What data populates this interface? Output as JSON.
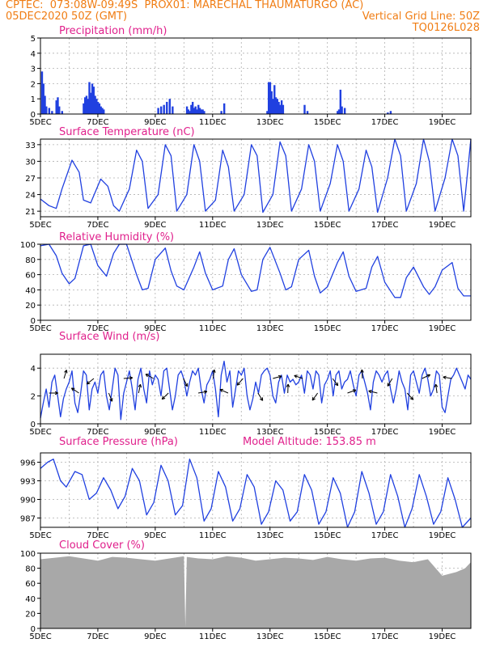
{
  "header": {
    "line1_left": "CPTEC:  073:08W-09:49S  PROX01: MARECHAL THAUMATURGO (AC)",
    "line2_left": "05DEC2020 50Z (GMT)",
    "line2_right": "Vertical Grid Line: 50Z",
    "line3_right": "TQ0126L028"
  },
  "colors": {
    "header": "#f07d14",
    "title": "#e0208c",
    "series": "#2040e0",
    "cloud": "#a8a8a8",
    "arrow": "#000000"
  },
  "x_tick_labels": [
    "5DEC",
    "7DEC",
    "9DEC",
    "11DEC",
    "13DEC",
    "15DEC",
    "17DEC",
    "19DEC"
  ],
  "panels": [
    {
      "id": "precip",
      "title": "Precipitation (mm/h)",
      "yticks": [
        "0",
        "1",
        "2",
        "3",
        "4",
        "5"
      ]
    },
    {
      "id": "temp",
      "title": "Surface Temperature (nC)",
      "yticks": [
        "21",
        "24",
        "27",
        "30",
        "33"
      ]
    },
    {
      "id": "rh",
      "title": "Relative Humidity (%)",
      "yticks": [
        "0",
        "20",
        "40",
        "60",
        "80",
        "100"
      ]
    },
    {
      "id": "wind",
      "title": "Surface Wind (m/s)",
      "yticks": [
        "0",
        "2",
        "4"
      ]
    },
    {
      "id": "pres",
      "title": "Surface Pressure (hPa)",
      "extra": "Model Altitude: 153.85 m",
      "yticks": [
        "987",
        "990",
        "993",
        "996"
      ]
    },
    {
      "id": "cloud",
      "title": "Cloud Cover (%)",
      "yticks": [
        "0",
        "20",
        "40",
        "60",
        "80",
        "100"
      ]
    }
  ],
  "chart_data": [
    {
      "type": "bar",
      "title": "Precipitation (mm/h)",
      "x_unit": "days from 5DEC",
      "ylim": [
        0,
        5
      ],
      "grid": true,
      "series": [
        {
          "x": [
            0.05,
            0.1,
            0.15,
            0.2,
            0.3,
            0.4,
            0.55,
            0.6,
            0.65,
            0.75,
            1.5,
            1.55,
            1.6,
            1.65,
            1.7,
            1.75,
            1.8,
            1.85,
            1.9,
            1.95,
            2.0,
            2.05,
            2.1,
            2.15,
            2.2,
            4.1,
            4.2,
            4.3,
            4.4,
            4.5,
            4.6,
            5.1,
            5.15,
            5.2,
            5.25,
            5.3,
            5.35,
            5.4,
            5.45,
            5.5,
            5.55,
            5.6,
            5.65,
            5.7,
            6.3,
            6.4,
            7.9,
            7.95,
            8.0,
            8.05,
            8.1,
            8.15,
            8.2,
            8.25,
            8.3,
            8.35,
            8.4,
            8.45,
            9.2,
            9.3,
            10.35,
            10.4,
            10.45,
            10.5,
            10.6,
            12.1,
            12.2
          ],
          "values": [
            2.8,
            2.0,
            1.2,
            0.5,
            0.4,
            0.2,
            0.9,
            1.1,
            0.5,
            0.2,
            0.7,
            1.1,
            1.2,
            1.0,
            2.1,
            1.4,
            2.0,
            1.8,
            1.2,
            1.0,
            0.8,
            0.7,
            0.5,
            0.4,
            0.3,
            0.4,
            0.5,
            0.6,
            0.8,
            1.0,
            0.5,
            0.5,
            0.3,
            0.2,
            0.6,
            0.8,
            0.4,
            0.5,
            0.3,
            0.6,
            0.4,
            0.3,
            0.3,
            0.2,
            0.2,
            0.7,
            0.2,
            2.1,
            2.1,
            1.5,
            1.0,
            1.9,
            1.1,
            1.0,
            0.8,
            0.6,
            0.9,
            0.6,
            0.6,
            0.2,
            0.2,
            0.3,
            1.6,
            0.5,
            0.4,
            0.1,
            0.2
          ]
        }
      ]
    },
    {
      "type": "line",
      "title": "Surface Temperature (nC)",
      "ylim": [
        20,
        34
      ],
      "grid": true,
      "series": [
        {
          "x": [
            0,
            0.3,
            0.55,
            0.75,
            1.1,
            1.35,
            1.5,
            1.75,
            2.1,
            2.35,
            2.55,
            2.75,
            3.1,
            3.35,
            3.55,
            3.75,
            4.1,
            4.35,
            4.55,
            4.75,
            5.1,
            5.35,
            5.55,
            5.75,
            6.1,
            6.35,
            6.55,
            6.75,
            7.1,
            7.35,
            7.55,
            7.75,
            8.1,
            8.35,
            8.55,
            8.75,
            9.1,
            9.35,
            9.55,
            9.75,
            10.1,
            10.35,
            10.55,
            10.75,
            11.1,
            11.35,
            11.55,
            11.75,
            12.1,
            12.35,
            12.55,
            12.75,
            13.1,
            13.35,
            13.55,
            13.75,
            14.1,
            14.35,
            14.55,
            14.75,
            15.0
          ],
          "values": [
            23.2,
            22.0,
            21.5,
            25.0,
            30.2,
            28.0,
            23.0,
            22.5,
            26.8,
            25.5,
            22.0,
            21.0,
            25.0,
            32.0,
            30.0,
            21.5,
            24.0,
            33.0,
            31.0,
            21.0,
            24.0,
            33.0,
            30.0,
            21.0,
            23.0,
            32.0,
            29.0,
            21.0,
            24.0,
            33.0,
            31.0,
            20.8,
            24.0,
            33.5,
            31.0,
            21.0,
            25.0,
            33.0,
            30.0,
            21.0,
            26.0,
            33.0,
            30.0,
            21.0,
            25.0,
            32.0,
            29.0,
            20.8,
            27.0,
            34.0,
            31.0,
            21.0,
            26.0,
            34.0,
            30.0,
            21.0,
            27.0,
            34.0,
            31.0,
            21.0,
            34.0
          ]
        }
      ]
    },
    {
      "type": "line",
      "title": "Relative Humidity (%)",
      "ylim": [
        0,
        100
      ],
      "grid": true,
      "series": [
        {
          "x": [
            0,
            0.3,
            0.55,
            0.75,
            1.0,
            1.2,
            1.5,
            1.75,
            2.0,
            2.3,
            2.55,
            2.75,
            3.0,
            3.35,
            3.55,
            3.75,
            4.0,
            4.35,
            4.55,
            4.75,
            5.0,
            5.35,
            5.55,
            5.75,
            6.0,
            6.35,
            6.55,
            6.75,
            7.0,
            7.35,
            7.55,
            7.75,
            8.0,
            8.35,
            8.55,
            8.75,
            9.0,
            9.35,
            9.55,
            9.75,
            10.0,
            10.35,
            10.55,
            10.75,
            11.0,
            11.35,
            11.55,
            11.75,
            12.0,
            12.35,
            12.55,
            12.75,
            13.0,
            13.35,
            13.55,
            13.75,
            14.0,
            14.35,
            14.55,
            14.75,
            15.0
          ],
          "values": [
            98,
            100,
            85,
            62,
            48,
            55,
            98,
            100,
            72,
            58,
            88,
            100,
            100,
            60,
            40,
            42,
            80,
            95,
            65,
            45,
            40,
            70,
            90,
            62,
            40,
            45,
            80,
            94,
            60,
            38,
            40,
            80,
            96,
            62,
            40,
            44,
            80,
            92,
            58,
            36,
            44,
            76,
            90,
            58,
            38,
            42,
            70,
            84,
            50,
            30,
            30,
            56,
            70,
            44,
            34,
            44,
            66,
            76,
            42,
            32,
            32
          ]
        }
      ]
    },
    {
      "type": "line",
      "title": "Surface Wind (m/s)",
      "ylim": [
        0,
        5
      ],
      "grid": true,
      "series": [
        {
          "x": [
            0,
            0.1,
            0.2,
            0.3,
            0.4,
            0.5,
            0.6,
            0.7,
            0.8,
            0.9,
            1.0,
            1.1,
            1.2,
            1.3,
            1.4,
            1.5,
            1.6,
            1.7,
            1.8,
            1.9,
            2.0,
            2.1,
            2.2,
            2.3,
            2.4,
            2.5,
            2.6,
            2.7,
            2.8,
            2.9,
            3.0,
            3.1,
            3.2,
            3.3,
            3.4,
            3.5,
            3.6,
            3.7,
            3.8,
            3.9,
            4.0,
            4.1,
            4.2,
            4.3,
            4.4,
            4.5,
            4.6,
            4.7,
            4.8,
            4.9,
            5.0,
            5.1,
            5.2,
            5.3,
            5.4,
            5.5,
            5.6,
            5.7,
            5.8,
            5.9,
            6.0,
            6.1,
            6.2,
            6.3,
            6.4,
            6.5,
            6.6,
            6.7,
            6.8,
            6.9,
            7.0,
            7.1,
            7.2,
            7.3,
            7.4,
            7.5,
            7.6,
            7.7,
            7.8,
            7.9,
            8.0,
            8.1,
            8.2,
            8.3,
            8.4,
            8.5,
            8.6,
            8.7,
            8.8,
            8.9,
            9.0,
            9.1,
            9.2,
            9.3,
            9.4,
            9.5,
            9.6,
            9.7,
            9.8,
            9.9,
            10.0,
            10.1,
            10.2,
            10.3,
            10.4,
            10.5,
            10.6,
            10.7,
            10.8,
            10.9,
            11.0,
            11.1,
            11.2,
            11.3,
            11.4,
            11.5,
            11.6,
            11.7,
            11.8,
            11.9,
            12.0,
            12.1,
            12.2,
            12.3,
            12.4,
            12.5,
            12.6,
            12.7,
            12.8,
            12.9,
            13.0,
            13.1,
            13.2,
            13.3,
            13.4,
            13.5,
            13.6,
            13.7,
            13.8,
            13.9,
            14.0,
            14.1,
            14.2,
            14.3,
            14.4,
            14.5,
            14.6,
            14.7,
            14.8,
            14.9,
            15.0
          ],
          "values": [
            0.4,
            1.5,
            2.5,
            1.2,
            3.0,
            3.5,
            2.0,
            0.5,
            1.8,
            2.5,
            3.0,
            3.8,
            1.5,
            0.8,
            2.2,
            3.8,
            3.5,
            1.0,
            2.5,
            3.0,
            2.2,
            3.5,
            3.8,
            2.0,
            1.0,
            2.5,
            4.0,
            3.5,
            0.3,
            2.2,
            3.0,
            3.8,
            2.5,
            1.0,
            3.2,
            4.0,
            2.5,
            1.5,
            3.8,
            2.8,
            3.5,
            3.2,
            2.0,
            3.8,
            4.0,
            2.5,
            1.0,
            2.0,
            3.5,
            3.8,
            3.2,
            2.0,
            3.0,
            3.8,
            3.5,
            4.0,
            2.5,
            1.5,
            2.8,
            3.2,
            3.8,
            2.5,
            0.5,
            3.5,
            4.5,
            3.0,
            3.8,
            1.2,
            2.5,
            3.8,
            3.5,
            4.0,
            2.0,
            1.0,
            1.8,
            3.0,
            2.2,
            3.5,
            3.8,
            4.0,
            3.5,
            2.0,
            1.5,
            3.0,
            3.5,
            2.2,
            3.5,
            3.0,
            3.2,
            2.8,
            3.0,
            3.5,
            2.2,
            3.8,
            3.5,
            2.5,
            3.8,
            3.5,
            1.5,
            2.8,
            3.2,
            3.8,
            2.0,
            3.5,
            3.8,
            2.5,
            3.0,
            3.2,
            3.8,
            2.8,
            2.0,
            3.5,
            3.8,
            3.0,
            2.2,
            1.0,
            3.0,
            3.8,
            3.5,
            3.0,
            3.5,
            3.8,
            2.5,
            1.5,
            2.5,
            3.8,
            3.0,
            2.5,
            1.0,
            3.5,
            3.8,
            3.0,
            2.2,
            3.5,
            4.0,
            3.2,
            2.0,
            2.5,
            3.8,
            3.5,
            1.2,
            0.8,
            2.0,
            3.2,
            3.5,
            4.0,
            3.5,
            3.0,
            2.5,
            3.5,
            3.2
          ]
        }
      ]
    },
    {
      "type": "line",
      "title": "Surface Pressure (hPa)",
      "ylim": [
        985.5,
        997.5
      ],
      "grid": true,
      "series": [
        {
          "x": [
            0,
            0.25,
            0.45,
            0.7,
            0.9,
            1.2,
            1.45,
            1.7,
            1.95,
            2.2,
            2.45,
            2.7,
            2.95,
            3.2,
            3.45,
            3.7,
            3.95,
            4.2,
            4.45,
            4.7,
            4.95,
            5.2,
            5.45,
            5.7,
            5.95,
            6.2,
            6.45,
            6.7,
            6.95,
            7.2,
            7.45,
            7.7,
            7.95,
            8.2,
            8.45,
            8.7,
            8.95,
            9.2,
            9.45,
            9.7,
            9.95,
            10.2,
            10.45,
            10.7,
            10.95,
            11.2,
            11.45,
            11.7,
            11.95,
            12.2,
            12.45,
            12.7,
            12.95,
            13.2,
            13.45,
            13.7,
            13.95,
            14.2,
            14.45,
            14.7,
            15.0
          ],
          "values": [
            995,
            996,
            996.5,
            993,
            992,
            994.5,
            994,
            990,
            991,
            993.5,
            991.5,
            988.5,
            990.5,
            995,
            993,
            987.5,
            989.5,
            995.5,
            993,
            987.5,
            989,
            996.5,
            993.5,
            986.5,
            988.5,
            994.5,
            992,
            986.5,
            988.5,
            994,
            992,
            986,
            988,
            993,
            991.5,
            986.5,
            988,
            994,
            991.5,
            986,
            988,
            993.5,
            991,
            985.5,
            988,
            994.5,
            991,
            986,
            988,
            994,
            990.5,
            985.5,
            988.5,
            994,
            990.5,
            986,
            988,
            993.5,
            990,
            985.5,
            987
          ]
        }
      ]
    },
    {
      "type": "area",
      "title": "Cloud Cover (%)",
      "ylim": [
        0,
        100
      ],
      "grid": true,
      "series": [
        {
          "x": [
            0,
            0.5,
            1.0,
            1.5,
            2.0,
            2.5,
            3.0,
            3.5,
            4.0,
            4.5,
            5.0,
            5.05,
            5.1,
            5.5,
            6.0,
            6.5,
            7.0,
            7.5,
            8.0,
            8.5,
            9.0,
            9.5,
            10.0,
            10.5,
            11.0,
            11.5,
            12.0,
            12.5,
            13.0,
            13.5,
            14.0,
            14.5,
            14.8,
            15.0
          ],
          "values": [
            92,
            94,
            96,
            93,
            90,
            95,
            94,
            92,
            90,
            93,
            96,
            2,
            95,
            93,
            92,
            96,
            94,
            90,
            92,
            94,
            93,
            91,
            95,
            92,
            90,
            93,
            94,
            90,
            88,
            92,
            70,
            75,
            80,
            88
          ]
        }
      ]
    }
  ]
}
